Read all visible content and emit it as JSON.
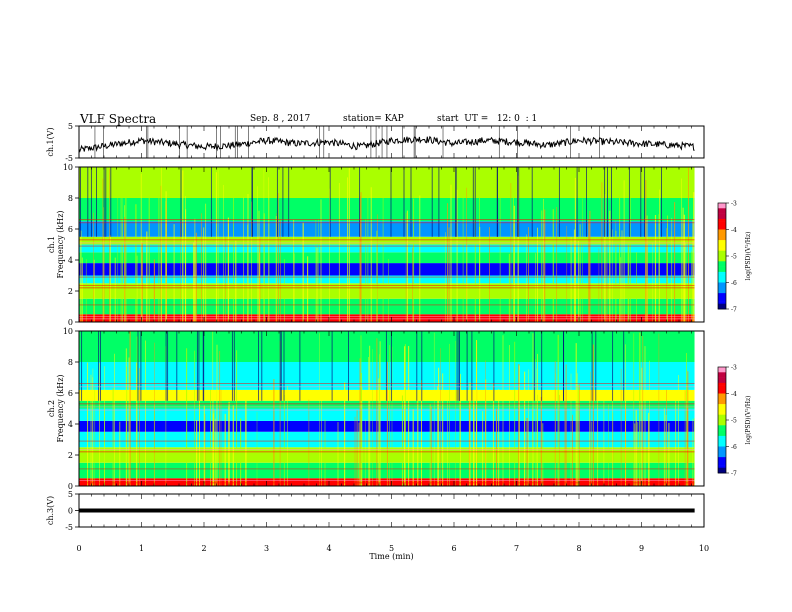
{
  "header": {
    "title": "VLF Spectra",
    "date": "Sep. 8 , 2017",
    "station": "station= KAP",
    "start_ut": "start  UT =   12: 0  : 1"
  },
  "chart_data": [
    {
      "type": "line",
      "panel": "ch1-waveform",
      "ylabel": "ch.1(V)",
      "ylim": [
        -5,
        5
      ],
      "yticks": [
        "5",
        "-5"
      ],
      "x_unit": "min",
      "xlim": [
        0,
        10
      ],
      "data_extent_min": 9.85,
      "note_values": "noisy waveform hovering between about -3 and 2 V",
      "sample_x": [
        0,
        0.5,
        1,
        1.5,
        2,
        2.5,
        3,
        3.5,
        4,
        4.5,
        5,
        5.5,
        6,
        6.5,
        7,
        7.5,
        8,
        8.5,
        9,
        9.5,
        9.85
      ],
      "sample_y": [
        -2.5,
        -1.0,
        0.5,
        -0.5,
        -1.5,
        -1.0,
        0.5,
        -0.5,
        0.0,
        -1.5,
        0.5,
        1.0,
        -0.5,
        0.5,
        0.0,
        -1.0,
        0.5,
        0.0,
        -0.5,
        -1.0,
        -1.5
      ]
    },
    {
      "type": "heatmap",
      "panel": "ch1-spectrogram",
      "ylabel": "ch.1\nFrequency (kHz)",
      "ylim": [
        0,
        10
      ],
      "yticks": [
        "0",
        "2",
        "4",
        "6",
        "8",
        "10"
      ],
      "xlim": [
        0,
        10
      ],
      "colorbar": {
        "label": "log(PSD)(V²/Hz)",
        "range": [
          -7,
          -3
        ],
        "ticks": [
          "-3",
          "-4",
          "-5",
          "-6",
          "-7"
        ]
      },
      "bands_khz": [
        {
          "f0": 0.0,
          "f1": 0.5,
          "level": 0.78
        },
        {
          "f0": 0.5,
          "f1": 1.5,
          "level": 0.42
        },
        {
          "f0": 1.5,
          "f1": 2.5,
          "level": 0.52
        },
        {
          "f0": 2.5,
          "f1": 3.0,
          "level": 0.34
        },
        {
          "f0": 3.0,
          "f1": 3.8,
          "level": 0.12
        },
        {
          "f0": 3.8,
          "f1": 4.5,
          "level": 0.36
        },
        {
          "f0": 4.5,
          "f1": 5.0,
          "level": 0.28
        },
        {
          "f0": 5.0,
          "f1": 5.5,
          "level": 0.46
        },
        {
          "f0": 5.5,
          "f1": 6.5,
          "level": 0.24
        },
        {
          "f0": 6.5,
          "f1": 8.0,
          "level": 0.42
        },
        {
          "f0": 8.0,
          "f1": 10.0,
          "level": 0.5
        }
      ]
    },
    {
      "type": "heatmap",
      "panel": "ch2-spectrogram",
      "ylabel": "ch.2\nFrequency (kHz)",
      "ylim": [
        0,
        10
      ],
      "yticks": [
        "0",
        "2",
        "4",
        "6",
        "8",
        "10"
      ],
      "xlim": [
        0,
        10
      ],
      "colorbar": {
        "label": "log(PSD)(V²/Hz)",
        "range": [
          -7,
          -3
        ],
        "ticks": [
          "-3",
          "-4",
          "-5",
          "-6",
          "-7"
        ]
      },
      "bands_khz": [
        {
          "f0": 0.0,
          "f1": 0.5,
          "level": 0.8
        },
        {
          "f0": 0.5,
          "f1": 1.5,
          "level": 0.38
        },
        {
          "f0": 1.5,
          "f1": 2.5,
          "level": 0.48
        },
        {
          "f0": 2.5,
          "f1": 3.5,
          "level": 0.3
        },
        {
          "f0": 3.5,
          "f1": 4.2,
          "level": 0.1
        },
        {
          "f0": 4.2,
          "f1": 5.0,
          "level": 0.3
        },
        {
          "f0": 5.0,
          "f1": 5.5,
          "level": 0.44
        },
        {
          "f0": 5.5,
          "f1": 6.2,
          "level": 0.55
        },
        {
          "f0": 6.2,
          "f1": 8.0,
          "level": 0.3
        },
        {
          "f0": 8.0,
          "f1": 10.0,
          "level": 0.36
        }
      ]
    },
    {
      "type": "line",
      "panel": "ch3-waveform",
      "ylabel": "ch.3(V)",
      "ylim": [
        -5,
        5
      ],
      "yticks": [
        "5",
        "0",
        "-5"
      ],
      "xlim": [
        0,
        10
      ],
      "constant_value": 0,
      "data_extent_min": 9.85
    }
  ],
  "xaxis": {
    "label": "Time  (min)",
    "ticks": [
      "0",
      "1",
      "2",
      "3",
      "4",
      "5",
      "6",
      "7",
      "8",
      "9",
      "10"
    ]
  },
  "colors": {
    "axis": "#000000",
    "colormap": [
      "#00007f",
      "#0000ff",
      "#0096ff",
      "#00ffff",
      "#00ff66",
      "#aaff00",
      "#ffff00",
      "#ff9900",
      "#ff0000",
      "#c00040",
      "#ff99cc"
    ]
  }
}
